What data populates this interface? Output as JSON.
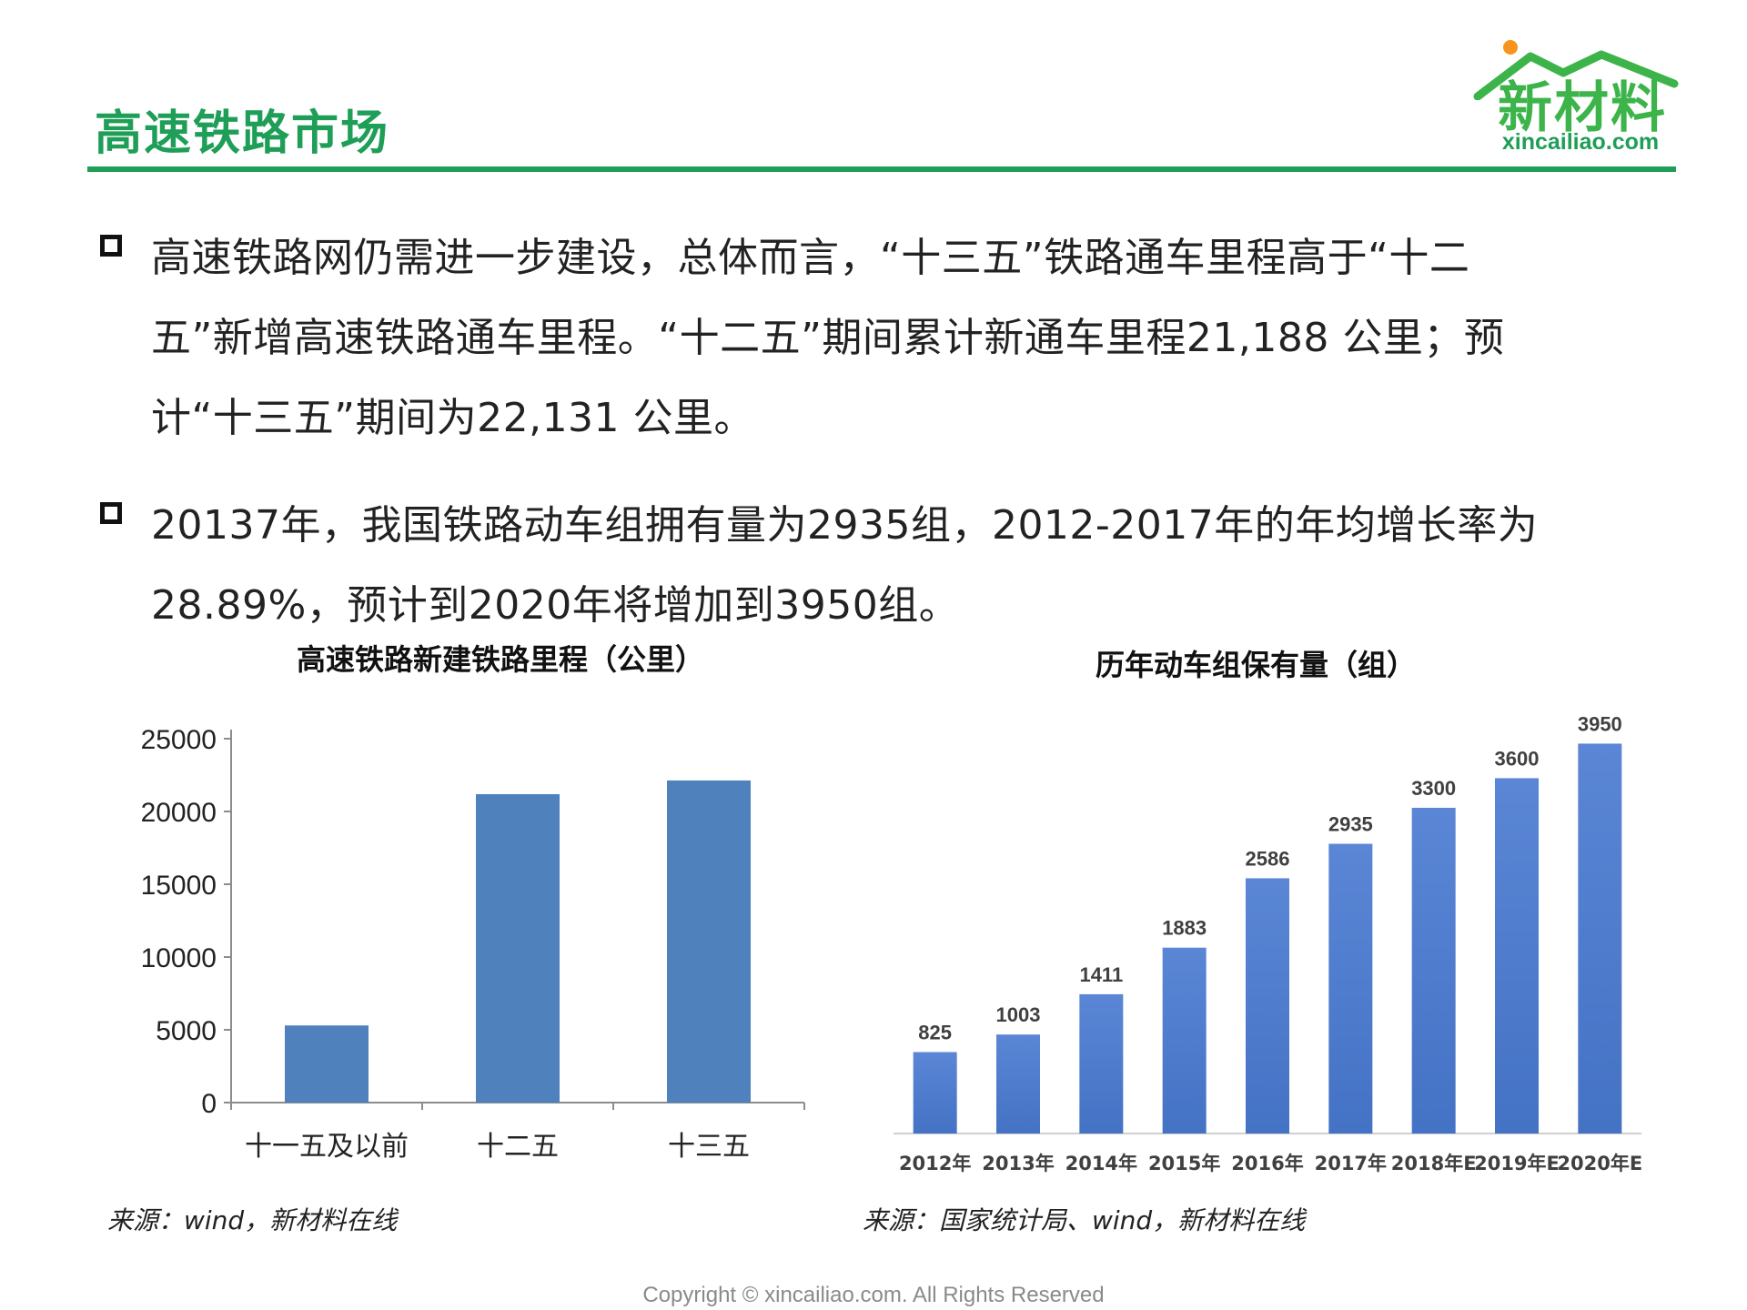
{
  "header": {
    "title": "高速铁路市场",
    "logo_text": "新材料",
    "logo_url": "xincailiao.com",
    "accent_color": "#1e9e57"
  },
  "bullets": [
    "高速铁路网仍需进一步建设，总体而言，“十三五”铁路通车里程高于“十二\n五”新增高速铁路通车里程。“十二五”期间累计新通车里程21,188 公里；预\n计“十三五”期间为22,131 公里。",
    "20137年，我国铁路动车组拥有量为2935组，2012-2017年的年均增长率为\n28.89%，预计到2020年将增加到3950组。"
  ],
  "chart_data": [
    {
      "type": "bar",
      "title": "高速铁路新建铁路里程（公里）",
      "categories": [
        "十一五及以前",
        "十二五",
        "十三五"
      ],
      "values": [
        5300,
        21188,
        22131
      ],
      "ylim": [
        0,
        25000
      ],
      "yticks": [
        "0",
        "5000",
        "10000",
        "15000",
        "20000",
        "25000"
      ],
      "grid": false,
      "bar_color": "#4f81bd",
      "source": "来源：wind，新材料在线"
    },
    {
      "type": "bar",
      "title": "历年动车组保有量（组）",
      "categories": [
        "2012年",
        "2013年",
        "2014年",
        "2015年",
        "2016年",
        "2017年",
        "2018年E",
        "2019年E",
        "2020年E"
      ],
      "values": [
        825,
        1003,
        1411,
        1883,
        2586,
        2935,
        3300,
        3600,
        3950
      ],
      "data_labels": [
        "825",
        "1003",
        "1411",
        "1883",
        "2586",
        "2935",
        "3300",
        "3600",
        "3950"
      ],
      "ylim": [
        0,
        4000
      ],
      "grid": false,
      "bar_color": "#4472c4",
      "source": "来源：国家统计局、wind，新材料在线"
    }
  ],
  "footer": {
    "copyright": "Copyright © xincailiao.com. All Rights Reserved"
  }
}
